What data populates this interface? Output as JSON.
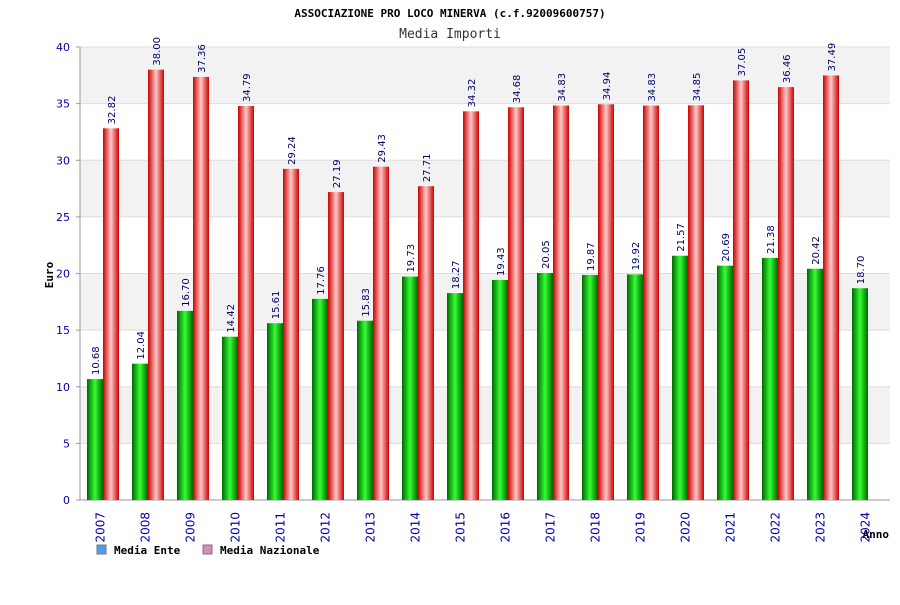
{
  "chart_data": {
    "type": "bar",
    "title": "ASSOCIAZIONE PRO LOCO MINERVA (c.f.92009600757)",
    "subtitle": "Media Importi",
    "xlabel": "Anno",
    "ylabel": "Euro",
    "ylim": [
      0,
      40
    ],
    "yticks": [
      "0",
      "5",
      "10",
      "15",
      "20",
      "25",
      "30",
      "35",
      "40"
    ],
    "grid": true,
    "legend_position": "bottom-left",
    "categories": [
      "2007",
      "2008",
      "2009",
      "2010",
      "2011",
      "2012",
      "2013",
      "2014",
      "2015",
      "2016",
      "2017",
      "2018",
      "2019",
      "2020",
      "2021",
      "2022",
      "2023",
      "2024"
    ],
    "series": [
      {
        "name": "Media Ente",
        "color": "#00aa00",
        "legend_color": "#5599ee",
        "values": [
          10.68,
          12.04,
          16.7,
          14.42,
          15.61,
          17.76,
          15.83,
          19.73,
          18.27,
          19.43,
          20.05,
          19.87,
          19.92,
          21.57,
          20.69,
          21.38,
          20.42,
          18.7
        ],
        "labels": [
          "10.68",
          "12.04",
          "16.70",
          "14.42",
          "15.61",
          "17.76",
          "15.83",
          "19.73",
          "18.27",
          "19.43",
          "20.05",
          "19.87",
          "19.92",
          "21.57",
          "20.69",
          "21.38",
          "20.42",
          "18.70"
        ]
      },
      {
        "name": "Media Nazionale",
        "color": "#ee1111",
        "legend_color": "#dd88bb",
        "values": [
          32.82,
          38.0,
          37.36,
          34.79,
          29.24,
          27.19,
          29.43,
          27.71,
          34.32,
          34.68,
          34.83,
          34.94,
          34.83,
          34.85,
          37.05,
          36.46,
          37.49,
          null
        ],
        "labels": [
          "32.82",
          "38.00",
          "37.36",
          "34.79",
          "29.24",
          "27.19",
          "29.43",
          "27.71",
          "34.32",
          "34.68",
          "34.83",
          "34.94",
          "34.83",
          "34.85",
          "37.05",
          "36.46",
          "37.49",
          ""
        ]
      }
    ]
  }
}
